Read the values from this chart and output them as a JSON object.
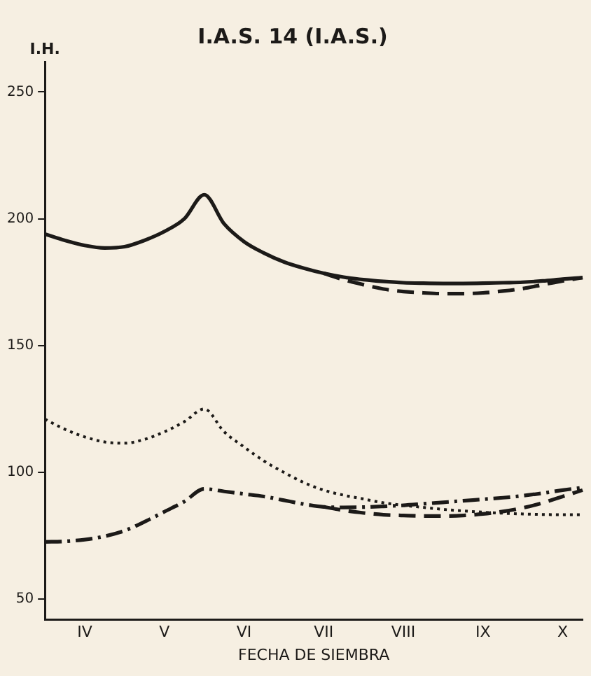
{
  "chart_data": {
    "type": "line",
    "title": "I.A.S. 14 (I.A.S.)",
    "xlabel": "FECHA DE SIEMBRA",
    "ylabel": "I.H.",
    "categories": [
      null,
      null,
      "IV",
      null,
      null,
      null,
      "V",
      null,
      null,
      null,
      "VI",
      null,
      null,
      null,
      "VII",
      null,
      null,
      null,
      "VIII",
      null,
      null,
      null,
      "IX",
      null,
      null,
      null,
      "X",
      null
    ],
    "ylim": [
      42,
      262
    ],
    "yticks": [
      50,
      100,
      150,
      200,
      250
    ],
    "grid": false,
    "legend": false,
    "marker": "none",
    "series": [
      {
        "color": "#1c1a18",
        "line_style": "solid",
        "values": [
          194,
          191.5,
          189.5,
          188.5,
          189,
          191.5,
          195,
          200,
          209.5,
          198,
          191,
          186.5,
          183,
          180.5,
          178.5,
          177,
          176,
          175.3,
          174.8,
          174.6,
          174.5,
          174.5,
          174.6,
          174.8,
          175,
          175.5,
          176.2,
          176.8
        ]
      },
      {
        "color": "#1c1a18",
        "line_style": "dashed",
        "values": [
          null,
          null,
          null,
          null,
          null,
          null,
          null,
          null,
          null,
          null,
          null,
          null,
          null,
          null,
          178.5,
          176,
          174,
          172.3,
          171.3,
          170.8,
          170.5,
          170.5,
          170.8,
          171.5,
          172.5,
          174,
          175.5,
          176.8
        ]
      },
      {
        "color": "#1c1a18",
        "line_style": "dotted",
        "values": [
          121,
          117,
          114,
          112,
          111.5,
          113,
          116,
          120,
          125,
          116,
          110,
          104.5,
          100,
          96,
          93,
          91,
          89.5,
          88,
          87,
          86.2,
          85.4,
          84.8,
          84.3,
          83.9,
          83.6,
          83.4,
          83.3,
          83.3
        ]
      },
      {
        "color": "#1c1a18",
        "line_style": "dashdot",
        "values": [
          72.6,
          72.8,
          73.5,
          74.8,
          77,
          80.5,
          84.5,
          88.5,
          93.5,
          92.5,
          91.5,
          90.5,
          89,
          87.5,
          86.4,
          86.2,
          86.3,
          86.6,
          87,
          87.6,
          88.2,
          88.8,
          89.4,
          90,
          90.8,
          91.8,
          93,
          94
        ]
      },
      {
        "color": "#1c1a18",
        "line_style": "dashed",
        "values": [
          null,
          null,
          null,
          null,
          null,
          null,
          null,
          null,
          null,
          null,
          null,
          null,
          null,
          null,
          86.4,
          85,
          84,
          83.3,
          83,
          82.8,
          82.8,
          83,
          83.6,
          84.6,
          86,
          88,
          90.5,
          93
        ]
      }
    ]
  }
}
